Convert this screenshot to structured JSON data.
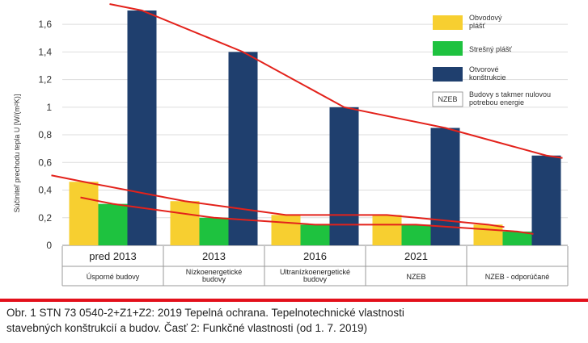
{
  "chart_data": {
    "type": "bar",
    "ylabel": "Súčiniteľ prechodu tepla U [W/(m²K)]",
    "ylim": [
      0,
      1.7
    ],
    "yticks": [
      "0",
      "0,2",
      "0,4",
      "0,6",
      "0,8",
      "1",
      "1,2",
      "1,4",
      "1,6"
    ],
    "categories": [
      {
        "year": "pred 2013",
        "label": "Úsporné budovy"
      },
      {
        "year": "2013",
        "label": "Nízkoenergetické budovy"
      },
      {
        "year": "2016",
        "label": "Ultranízkoenergetické budovy"
      },
      {
        "year": "2021",
        "label": "NZEB"
      },
      {
        "year": "",
        "label": "NZEB - odporúčané"
      }
    ],
    "series": [
      {
        "name": "Obvodový plášť",
        "color": "#f7cf30",
        "values": [
          0.46,
          0.32,
          0.22,
          0.22,
          0.15
        ]
      },
      {
        "name": "Strešný plášť",
        "color": "#1ec23f",
        "values": [
          0.3,
          0.2,
          0.15,
          0.15,
          0.1
        ]
      },
      {
        "name": "Otvorové konštrukcie",
        "color": "#1f3f6e",
        "values": [
          1.7,
          1.4,
          1.0,
          0.85,
          0.65
        ]
      }
    ],
    "legend_extra": {
      "badge": "NZEB",
      "text": "Budovy s takmer nulovou potrebou energie"
    },
    "legend_position": "top-right",
    "trend_color": "#e3221b",
    "grid": true
  },
  "caption": {
    "line1": "Obr. 1 STN 73 0540-2+Z1+Z2: 2019 Tepelná ochrana. Tepelnotechnické vlastnosti",
    "line2": "stavebných konštrukcií a budov. Časť 2: Funkčné vlastnosti (od 1. 7. 2019)"
  }
}
